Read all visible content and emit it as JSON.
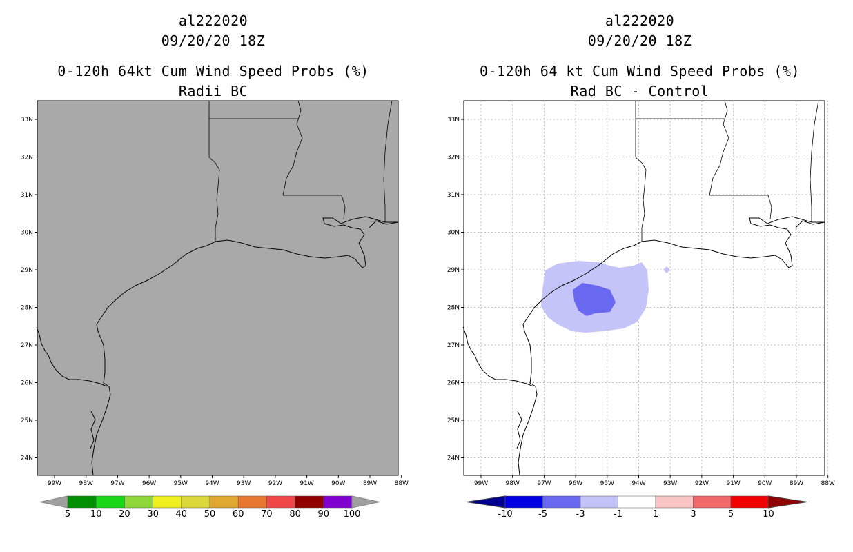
{
  "left_panel": {
    "title_line1": "al222020",
    "title_line2": "09/20/20 18Z",
    "title_line3": "0-120h 64kt Cum Wind Speed Probs (%)",
    "title_line4": "Radii BC",
    "colorbar": {
      "labels": [
        "5",
        "10",
        "20",
        "30",
        "40",
        "50",
        "60",
        "70",
        "80",
        "90",
        "100"
      ],
      "colors": [
        "#008f00",
        "#18d818",
        "#8fd83a",
        "#f0f020",
        "#dcd83a",
        "#e0a830",
        "#e87830",
        "#f04848",
        "#900000",
        "#8000d0"
      ],
      "end_color": "#a0a0a0"
    },
    "map_fill": "#a9a9a9"
  },
  "right_panel": {
    "title_line1": "al222020",
    "title_line2": "09/20/20 18Z",
    "title_line3": "0-120h 64 kt Cum Wind Speed Probs (%)",
    "title_line4": "Rad BC - Control",
    "colorbar": {
      "labels": [
        "-10",
        "-5",
        "-3",
        "-1",
        "1",
        "3",
        "5",
        "10"
      ],
      "colors": [
        "#0000e0",
        "#6868f0",
        "#c4c4f8",
        "#ffffff",
        "#f8c4c4",
        "#f06868",
        "#f00000"
      ],
      "low_end_color": "#000090",
      "high_end_color": "#900000"
    },
    "contours": [
      {
        "level": "-1 to -3",
        "color": "#c4c4f8"
      },
      {
        "level": "-3 to -5",
        "color": "#6868f0"
      }
    ]
  },
  "axes": {
    "lat_labels": [
      "33N",
      "32N",
      "31N",
      "30N",
      "29N",
      "28N",
      "27N",
      "26N",
      "25N",
      "24N"
    ],
    "lon_labels": [
      "99W",
      "98W",
      "97W",
      "96W",
      "95W",
      "94W",
      "93W",
      "92W",
      "91W",
      "90W",
      "89W",
      "88W"
    ]
  }
}
